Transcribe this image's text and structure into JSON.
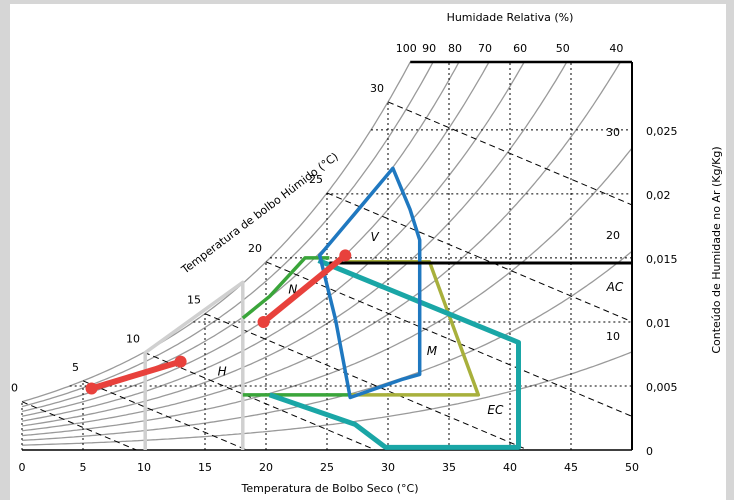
{
  "chart_data": {
    "type": "psychrometric",
    "x_label": "Temperatura de Bolbo Seco (°C)",
    "y_label": "Conteúdo de Humidade no Ar (Kg/Kg)",
    "rh_label": "Humidade Relativa (%)",
    "wb_label": "Temperatura de bolbo Húmido (°C)",
    "xlim": [
      0,
      50
    ],
    "ylim": [
      0,
      0.0303
    ],
    "xticks": [
      0,
      5,
      10,
      15,
      20,
      25,
      30,
      35,
      40,
      45,
      50
    ],
    "yticks": [
      0,
      {
        "value": 0.005,
        "label": "0,005"
      },
      {
        "value": 0.01,
        "label": "0,01"
      },
      {
        "value": 0.015,
        "label": "0,015"
      },
      {
        "value": 0.02,
        "label": "0,02"
      },
      {
        "value": 0.025,
        "label": "0,025"
      }
    ],
    "grid": true,
    "curve_color": "#9a9a9a",
    "rh_curves": [
      10,
      20,
      30,
      40,
      50,
      60,
      70,
      80,
      90,
      100
    ],
    "wet_bulb": [
      0,
      5,
      10,
      15,
      20,
      25,
      30
    ],
    "zones": [
      {
        "name": "H",
        "color": "#d0d0d0",
        "x": [
          10.1,
          10.1,
          18.1,
          18.1
        ],
        "y": [
          0,
          0.0076,
          0.0131,
          0
        ],
        "label_at": [
          16.4,
          0.0061
        ]
      },
      {
        "name": "N",
        "color": "#3aa53a",
        "x": [
          18.1,
          20.3,
          23.2,
          25.2,
          null,
          18.1,
          27.0
        ],
        "y": [
          0.0103,
          0.012,
          0.015,
          0.015,
          null,
          0.0043,
          0.0043
        ],
        "label_at": [
          22.2,
          0.0125
        ]
      },
      {
        "color": "#a8b03c",
        "x": [
          26.5,
          33.4,
          37.4,
          27.0
        ],
        "y": [
          0.0147,
          0.0147,
          0.0043,
          0.0043
        ]
      },
      {
        "name": "EC",
        "color": "#1aa6a6",
        "x": [
          24.3,
          40.7,
          40.7,
          29.8,
          27.3,
          20.3
        ],
        "y": [
          0.0148,
          0.0084,
          0.0002,
          0.0002,
          0.002,
          0.0043
        ],
        "label_at": [
          38.8,
          0.0031
        ]
      },
      {
        "name": "V",
        "color": "#1f78c0",
        "x": [
          25.7,
          24.4,
          30.4,
          31.8,
          32.6,
          32.6
        ],
        "y": [
          0.0102,
          0.0152,
          0.022,
          0.0188,
          0.0164,
          0.0147
        ],
        "label_at": [
          28.9,
          0.0166
        ]
      },
      {
        "name": "M",
        "color": "#1f78c0",
        "x": [
          32.6,
          32.6,
          31.1,
          26.9,
          25.7
        ],
        "y": [
          0.0147,
          0.0059,
          0.0055,
          0.0041,
          0.0102
        ],
        "label_at": [
          33.6,
          0.0077
        ]
      },
      {
        "name": "AC",
        "color": "#000000",
        "x": [
          25.2,
          50
        ],
        "y": [
          0.0146,
          0.0146
        ],
        "label_at": [
          48.6,
          0.0127
        ]
      }
    ],
    "series": [
      {
        "color": "#e8413c",
        "x": [
          5.7,
          13.0
        ],
        "y": [
          0.0048,
          0.0069
        ]
      },
      {
        "color": "#e8413c",
        "x": [
          19.8,
          26.5
        ],
        "y": [
          0.01,
          0.0152
        ]
      }
    ]
  }
}
